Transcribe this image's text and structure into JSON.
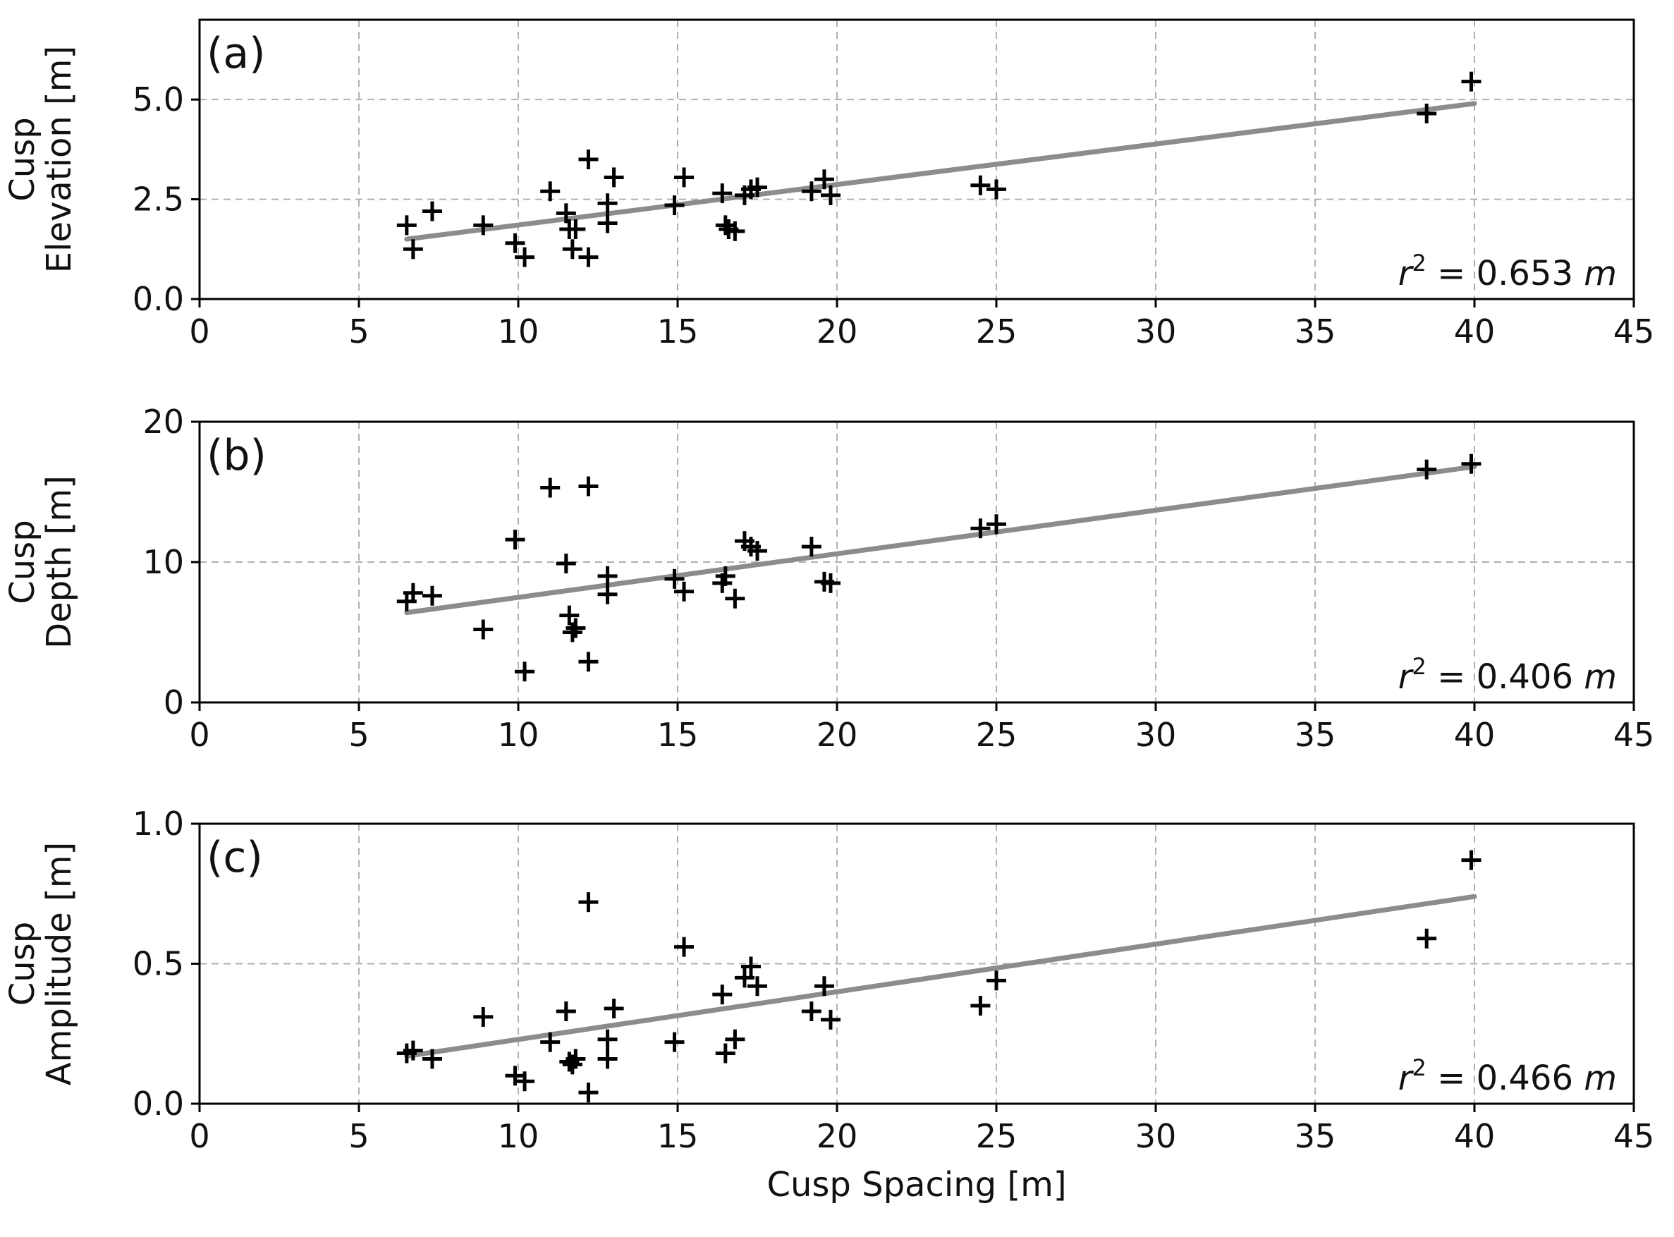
{
  "chart_data": {
    "type": "scatter",
    "layout": "three stacked panels, shared x-axis values",
    "xlabel": "Cusp Spacing [m]",
    "xlim": [
      0,
      45
    ],
    "xticks": [
      0,
      5,
      10,
      15,
      20,
      25,
      30,
      35,
      40,
      45
    ],
    "panels": [
      {
        "id": "a",
        "tag": "(a)",
        "ylabel_line1": "Cusp",
        "ylabel_line2": "Elevation [m]",
        "ylim": [
          0,
          7
        ],
        "yticks": [
          0.0,
          2.5,
          5.0
        ],
        "ytick_labels": [
          "0.0",
          "2.5",
          "5.0"
        ],
        "annotation_prefix": "r",
        "annotation_sup": "2",
        "annotation_value": " = 0.653 ",
        "annotation_unit": "m",
        "fit_line": {
          "x": [
            6.5,
            40
          ],
          "y": [
            1.5,
            4.9
          ]
        },
        "points": {
          "x": [
            6.5,
            6.7,
            7.3,
            8.9,
            9.9,
            10.2,
            11.0,
            11.5,
            11.6,
            11.7,
            11.8,
            12.2,
            12.2,
            12.8,
            12.8,
            13.0,
            14.9,
            15.2,
            16.4,
            16.5,
            16.6,
            16.8,
            17.1,
            17.3,
            17.5,
            19.2,
            19.6,
            19.8,
            24.5,
            25.0,
            38.5,
            39.9
          ],
          "y": [
            1.85,
            1.25,
            2.2,
            1.85,
            1.4,
            1.05,
            2.7,
            2.15,
            1.75,
            1.25,
            1.75,
            3.5,
            1.05,
            2.4,
            1.9,
            3.05,
            2.35,
            3.05,
            2.65,
            1.85,
            1.75,
            1.7,
            2.6,
            2.75,
            2.8,
            2.7,
            3.0,
            2.6,
            2.85,
            2.75,
            4.65,
            5.45
          ]
        }
      },
      {
        "id": "b",
        "tag": "(b)",
        "ylabel_line1": "Cusp",
        "ylabel_line2": "Depth [m]",
        "ylim": [
          0,
          20
        ],
        "yticks": [
          0,
          10,
          20
        ],
        "ytick_labels": [
          "0",
          "10",
          "20"
        ],
        "annotation_prefix": "r",
        "annotation_sup": "2",
        "annotation_value": " = 0.406 ",
        "annotation_unit": "m",
        "fit_line": {
          "x": [
            6.5,
            40
          ],
          "y": [
            6.4,
            16.8
          ]
        },
        "points": {
          "x": [
            6.5,
            6.7,
            7.3,
            8.9,
            9.9,
            10.2,
            11.0,
            11.5,
            11.6,
            11.7,
            11.8,
            12.2,
            12.2,
            12.8,
            12.8,
            14.9,
            15.2,
            16.4,
            16.5,
            16.8,
            17.1,
            17.3,
            17.5,
            19.2,
            19.6,
            19.8,
            24.5,
            25.0,
            38.5,
            39.9
          ],
          "y": [
            7.2,
            7.8,
            7.6,
            5.2,
            11.6,
            2.2,
            15.3,
            9.9,
            6.2,
            5.0,
            5.3,
            15.4,
            2.9,
            9.0,
            7.7,
            8.8,
            7.9,
            8.5,
            9.0,
            7.4,
            11.5,
            11.1,
            10.8,
            11.1,
            8.6,
            8.5,
            12.4,
            12.7,
            16.6,
            17.0
          ]
        }
      },
      {
        "id": "c",
        "tag": "(c)",
        "ylabel_line1": "Cusp",
        "ylabel_line2": "Amplitude [m]",
        "ylim": [
          0,
          1
        ],
        "yticks": [
          0.0,
          0.5,
          1.0
        ],
        "ytick_labels": [
          "0.0",
          "0.5",
          "1.0"
        ],
        "annotation_prefix": "r",
        "annotation_sup": "2",
        "annotation_value": " = 0.466 ",
        "annotation_unit": "m",
        "fit_line": {
          "x": [
            6.5,
            40
          ],
          "y": [
            0.17,
            0.74
          ]
        },
        "points": {
          "x": [
            6.5,
            6.7,
            7.3,
            8.9,
            9.9,
            10.2,
            11.0,
            11.5,
            11.6,
            11.7,
            11.8,
            12.2,
            12.2,
            12.8,
            12.8,
            13.0,
            14.9,
            15.2,
            16.4,
            16.5,
            16.8,
            17.1,
            17.3,
            17.5,
            19.2,
            19.6,
            19.8,
            24.5,
            25.0,
            38.5,
            39.9
          ],
          "y": [
            0.18,
            0.19,
            0.16,
            0.31,
            0.1,
            0.08,
            0.22,
            0.33,
            0.15,
            0.14,
            0.16,
            0.72,
            0.04,
            0.23,
            0.16,
            0.34,
            0.22,
            0.56,
            0.39,
            0.18,
            0.23,
            0.45,
            0.49,
            0.42,
            0.33,
            0.42,
            0.3,
            0.35,
            0.44,
            0.59,
            0.87
          ]
        }
      }
    ]
  }
}
